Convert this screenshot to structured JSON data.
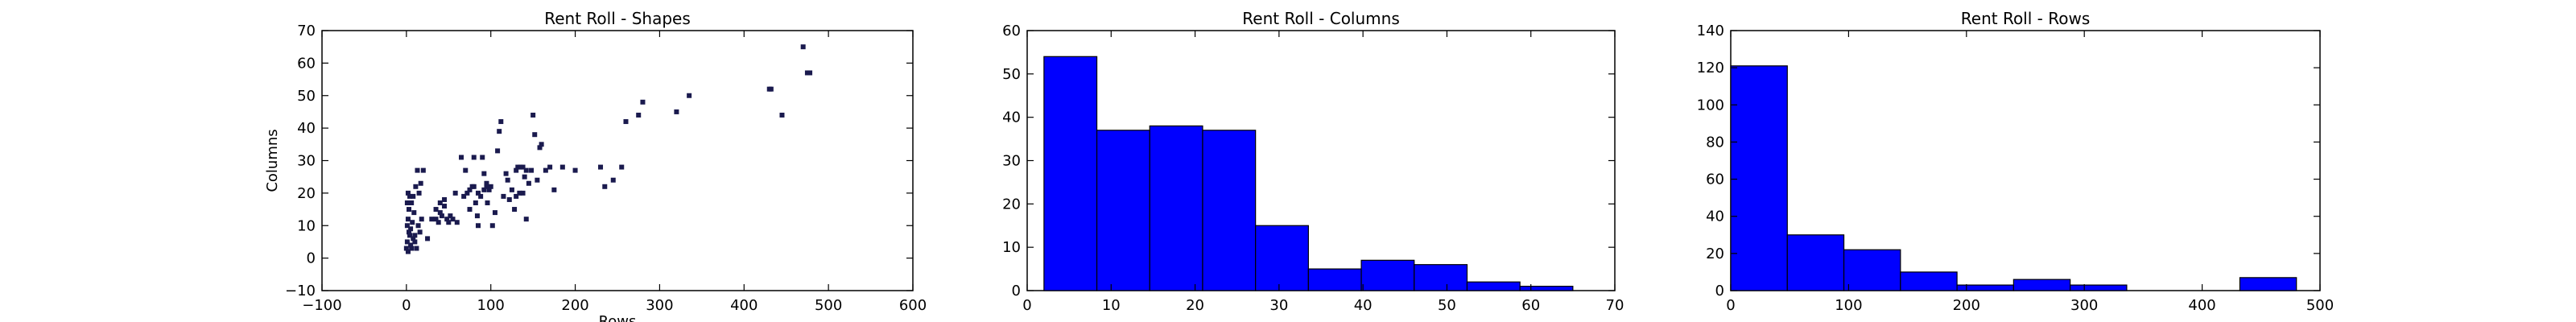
{
  "chart_data": [
    {
      "type": "scatter",
      "title": "Rent Roll - Shapes",
      "xlabel": "Rows",
      "ylabel": "Columns",
      "xlim": [
        -100,
        600
      ],
      "ylim": [
        -10,
        70
      ],
      "xticks": [
        -100,
        0,
        100,
        200,
        300,
        400,
        500,
        600
      ],
      "yticks": [
        -10,
        0,
        10,
        20,
        30,
        40,
        50,
        60,
        70
      ],
      "grid": false,
      "marker_color": "#1a1a4e",
      "points": [
        [
          0,
          3
        ],
        [
          1,
          5
        ],
        [
          2,
          2
        ],
        [
          3,
          8
        ],
        [
          1,
          10
        ],
        [
          2,
          12
        ],
        [
          4,
          7
        ],
        [
          5,
          4
        ],
        [
          3,
          15
        ],
        [
          6,
          17
        ],
        [
          2,
          20
        ],
        [
          8,
          19
        ],
        [
          5,
          9
        ],
        [
          7,
          11
        ],
        [
          10,
          5
        ],
        [
          12,
          3
        ],
        [
          9,
          14
        ],
        [
          11,
          22
        ],
        [
          13,
          27
        ],
        [
          15,
          20
        ],
        [
          17,
          23
        ],
        [
          14,
          10
        ],
        [
          18,
          12
        ],
        [
          20,
          27
        ],
        [
          16,
          8
        ],
        [
          1,
          17
        ],
        [
          4,
          19
        ],
        [
          6,
          3
        ],
        [
          8,
          6
        ],
        [
          10,
          7
        ],
        [
          25,
          6
        ],
        [
          30,
          12
        ],
        [
          35,
          15
        ],
        [
          38,
          11
        ],
        [
          40,
          17
        ],
        [
          42,
          13
        ],
        [
          45,
          18
        ],
        [
          48,
          12
        ],
        [
          50,
          11
        ],
        [
          52,
          13
        ],
        [
          55,
          12
        ],
        [
          58,
          20
        ],
        [
          60,
          11
        ],
        [
          40,
          14
        ],
        [
          45,
          16
        ],
        [
          35,
          12
        ],
        [
          65,
          31
        ],
        [
          70,
          27
        ],
        [
          75,
          15
        ],
        [
          78,
          22
        ],
        [
          80,
          31
        ],
        [
          82,
          17
        ],
        [
          84,
          13
        ],
        [
          85,
          10
        ],
        [
          88,
          19
        ],
        [
          90,
          31
        ],
        [
          92,
          26
        ],
        [
          95,
          22
        ],
        [
          98,
          21
        ],
        [
          100,
          22
        ],
        [
          102,
          10
        ],
        [
          105,
          14
        ],
        [
          108,
          33
        ],
        [
          110,
          39
        ],
        [
          112,
          42
        ],
        [
          115,
          19
        ],
        [
          118,
          26
        ],
        [
          120,
          24
        ],
        [
          122,
          18
        ],
        [
          125,
          21
        ],
        [
          128,
          15
        ],
        [
          130,
          27
        ],
        [
          132,
          28
        ],
        [
          135,
          28
        ],
        [
          138,
          20
        ],
        [
          140,
          25
        ],
        [
          142,
          12
        ],
        [
          145,
          23
        ],
        [
          148,
          27
        ],
        [
          150,
          44
        ],
        [
          152,
          38
        ],
        [
          155,
          24
        ],
        [
          158,
          34
        ],
        [
          160,
          35
        ],
        [
          165,
          27
        ],
        [
          170,
          28
        ],
        [
          175,
          21
        ],
        [
          185,
          28
        ],
        [
          200,
          27
        ],
        [
          230,
          28
        ],
        [
          235,
          22
        ],
        [
          245,
          24
        ],
        [
          255,
          28
        ],
        [
          260,
          42
        ],
        [
          275,
          44
        ],
        [
          280,
          48
        ],
        [
          320,
          45
        ],
        [
          335,
          50
        ],
        [
          430,
          52
        ],
        [
          432,
          52
        ],
        [
          445,
          44
        ],
        [
          470,
          65
        ],
        [
          475,
          57
        ],
        [
          478,
          57
        ],
        [
          95,
          23
        ],
        [
          92,
          21
        ],
        [
          85,
          20
        ],
        [
          80,
          22
        ],
        [
          75,
          21
        ],
        [
          72,
          20
        ],
        [
          68,
          19
        ],
        [
          130,
          19
        ],
        [
          134,
          20
        ],
        [
          138,
          28
        ],
        [
          142,
          27
        ],
        [
          96,
          17
        ]
      ]
    },
    {
      "type": "bar",
      "title": "Rent Roll - Columns",
      "xlim": [
        0,
        70
      ],
      "ylim": [
        0,
        60
      ],
      "xticks": [
        0,
        10,
        20,
        30,
        40,
        50,
        60,
        70
      ],
      "yticks": [
        0,
        10,
        20,
        30,
        40,
        50,
        60
      ],
      "bar_color": "#0000ff",
      "bin_edges": [
        2,
        8.3,
        14.6,
        20.9,
        27.2,
        33.5,
        39.8,
        46.1,
        52.4,
        58.7,
        65
      ],
      "values": [
        54,
        37,
        38,
        37,
        15,
        5,
        7,
        6,
        2,
        1
      ]
    },
    {
      "type": "bar",
      "title": "Rent Roll - Rows",
      "xlim": [
        0,
        500
      ],
      "ylim": [
        0,
        140
      ],
      "xticks": [
        0,
        100,
        200,
        300,
        400,
        500
      ],
      "yticks": [
        0,
        20,
        40,
        60,
        80,
        100,
        120,
        140
      ],
      "bar_color": "#0000ff",
      "bin_edges": [
        0,
        48,
        96,
        144,
        192,
        240,
        288,
        336,
        384,
        432,
        480
      ],
      "values": [
        121,
        30,
        22,
        10,
        3,
        6,
        3,
        0,
        0,
        7
      ]
    }
  ]
}
